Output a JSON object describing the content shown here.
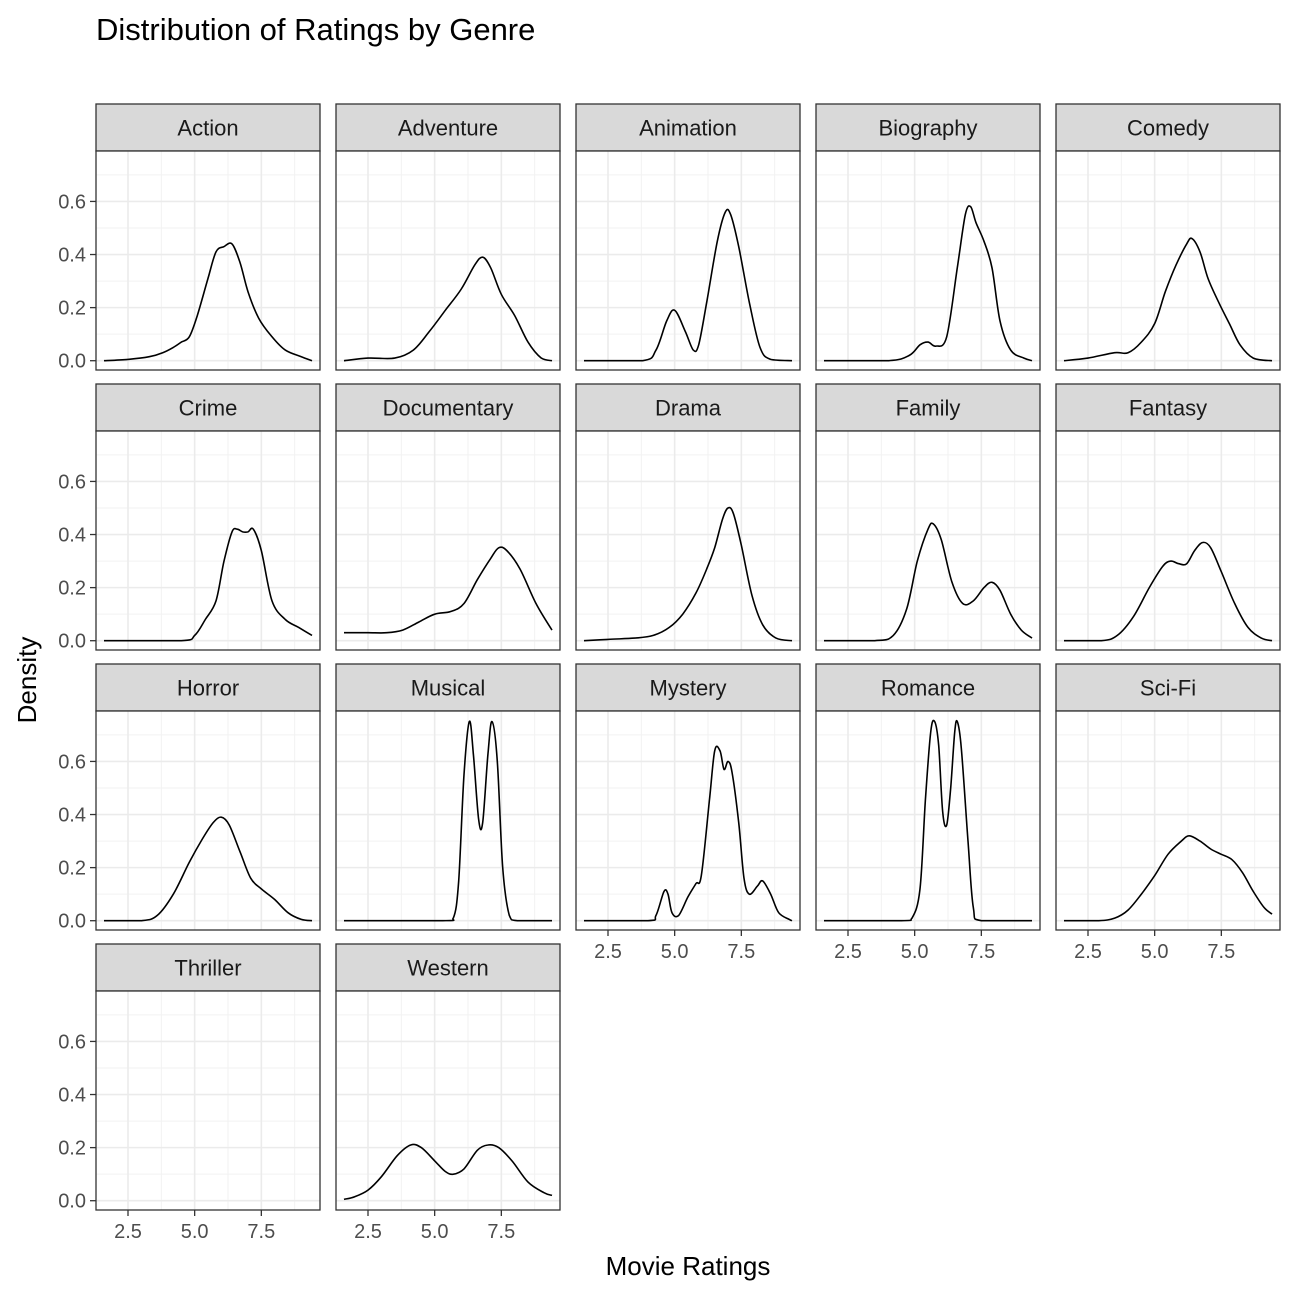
{
  "chart_data": {
    "type": "area",
    "title": "Distribution of Ratings by Genre",
    "xlabel": "Movie Ratings",
    "ylabel": "Density",
    "xlim": [
      1.3,
      9.7
    ],
    "ylim": [
      -0.035,
      0.79
    ],
    "x_ticks": [
      2.5,
      5.0,
      7.5
    ],
    "x_tick_labels": [
      "2.5",
      "5.0",
      "7.5"
    ],
    "y_ticks": [
      0.0,
      0.2,
      0.4,
      0.6
    ],
    "y_tick_labels": [
      "0.0",
      "0.2",
      "0.4",
      "0.6"
    ],
    "grid": true,
    "facet_layout": "wrap 5 columns",
    "panels": [
      {
        "genre": "Action",
        "points": [
          [
            1.6,
            0
          ],
          [
            2.5,
            0.005
          ],
          [
            3.3,
            0.015
          ],
          [
            3.8,
            0.03
          ],
          [
            4.2,
            0.05
          ],
          [
            4.5,
            0.07
          ],
          [
            4.8,
            0.09
          ],
          [
            5.1,
            0.17
          ],
          [
            5.5,
            0.31
          ],
          [
            5.8,
            0.41
          ],
          [
            6.1,
            0.43
          ],
          [
            6.4,
            0.44
          ],
          [
            6.7,
            0.37
          ],
          [
            7.0,
            0.26
          ],
          [
            7.4,
            0.16
          ],
          [
            7.9,
            0.09
          ],
          [
            8.4,
            0.04
          ],
          [
            9.0,
            0.015
          ],
          [
            9.4,
            0
          ]
        ]
      },
      {
        "genre": "Adventure",
        "points": [
          [
            1.6,
            0
          ],
          [
            2.5,
            0.01
          ],
          [
            3.5,
            0.01
          ],
          [
            4.2,
            0.04
          ],
          [
            4.8,
            0.11
          ],
          [
            5.4,
            0.19
          ],
          [
            6.0,
            0.27
          ],
          [
            6.5,
            0.36
          ],
          [
            6.8,
            0.39
          ],
          [
            7.1,
            0.35
          ],
          [
            7.5,
            0.25
          ],
          [
            8.0,
            0.17
          ],
          [
            8.5,
            0.07
          ],
          [
            9.0,
            0.01
          ],
          [
            9.4,
            0
          ]
        ]
      },
      {
        "genre": "Animation",
        "points": [
          [
            1.6,
            0
          ],
          [
            3.8,
            0
          ],
          [
            4.3,
            0.04
          ],
          [
            4.7,
            0.15
          ],
          [
            5.0,
            0.19
          ],
          [
            5.4,
            0.11
          ],
          [
            5.7,
            0.04
          ],
          [
            5.9,
            0.06
          ],
          [
            6.2,
            0.22
          ],
          [
            6.6,
            0.45
          ],
          [
            6.9,
            0.56
          ],
          [
            7.1,
            0.55
          ],
          [
            7.4,
            0.43
          ],
          [
            7.8,
            0.22
          ],
          [
            8.2,
            0.05
          ],
          [
            8.6,
            0.005
          ],
          [
            9.4,
            0
          ]
        ]
      },
      {
        "genre": "Biography",
        "points": [
          [
            1.6,
            0
          ],
          [
            4.0,
            0
          ],
          [
            4.8,
            0.02
          ],
          [
            5.2,
            0.06
          ],
          [
            5.5,
            0.07
          ],
          [
            5.8,
            0.055
          ],
          [
            6.2,
            0.09
          ],
          [
            6.6,
            0.35
          ],
          [
            6.9,
            0.55
          ],
          [
            7.1,
            0.58
          ],
          [
            7.3,
            0.52
          ],
          [
            7.6,
            0.45
          ],
          [
            7.9,
            0.35
          ],
          [
            8.2,
            0.15
          ],
          [
            8.6,
            0.04
          ],
          [
            9.1,
            0.01
          ],
          [
            9.4,
            0
          ]
        ]
      },
      {
        "genre": "Comedy",
        "points": [
          [
            1.6,
            0
          ],
          [
            2.5,
            0.01
          ],
          [
            3.5,
            0.03
          ],
          [
            4.0,
            0.03
          ],
          [
            4.5,
            0.07
          ],
          [
            5.0,
            0.14
          ],
          [
            5.4,
            0.26
          ],
          [
            5.8,
            0.36
          ],
          [
            6.2,
            0.44
          ],
          [
            6.4,
            0.46
          ],
          [
            6.7,
            0.41
          ],
          [
            7.0,
            0.31
          ],
          [
            7.4,
            0.22
          ],
          [
            7.8,
            0.14
          ],
          [
            8.2,
            0.06
          ],
          [
            8.7,
            0.01
          ],
          [
            9.4,
            0
          ]
        ]
      },
      {
        "genre": "Crime",
        "points": [
          [
            1.6,
            0
          ],
          [
            4.5,
            0
          ],
          [
            5.0,
            0.02
          ],
          [
            5.4,
            0.08
          ],
          [
            5.8,
            0.15
          ],
          [
            6.1,
            0.3
          ],
          [
            6.4,
            0.41
          ],
          [
            6.6,
            0.42
          ],
          [
            6.8,
            0.41
          ],
          [
            7.0,
            0.41
          ],
          [
            7.2,
            0.42
          ],
          [
            7.5,
            0.34
          ],
          [
            7.9,
            0.15
          ],
          [
            8.4,
            0.08
          ],
          [
            8.9,
            0.05
          ],
          [
            9.4,
            0.02
          ]
        ]
      },
      {
        "genre": "Documentary",
        "points": [
          [
            1.6,
            0.03
          ],
          [
            2.5,
            0.03
          ],
          [
            3.2,
            0.03
          ],
          [
            3.8,
            0.04
          ],
          [
            4.4,
            0.07
          ],
          [
            5.0,
            0.1
          ],
          [
            5.6,
            0.11
          ],
          [
            6.1,
            0.14
          ],
          [
            6.6,
            0.23
          ],
          [
            7.1,
            0.31
          ],
          [
            7.4,
            0.35
          ],
          [
            7.7,
            0.34
          ],
          [
            8.2,
            0.27
          ],
          [
            8.8,
            0.14
          ],
          [
            9.4,
            0.04
          ]
        ]
      },
      {
        "genre": "Drama",
        "points": [
          [
            1.6,
            0
          ],
          [
            2.5,
            0.005
          ],
          [
            3.5,
            0.01
          ],
          [
            4.2,
            0.02
          ],
          [
            4.8,
            0.05
          ],
          [
            5.3,
            0.1
          ],
          [
            5.8,
            0.18
          ],
          [
            6.2,
            0.27
          ],
          [
            6.5,
            0.35
          ],
          [
            6.8,
            0.46
          ],
          [
            7.0,
            0.5
          ],
          [
            7.2,
            0.48
          ],
          [
            7.5,
            0.36
          ],
          [
            7.9,
            0.17
          ],
          [
            8.3,
            0.06
          ],
          [
            8.8,
            0.01
          ],
          [
            9.4,
            0
          ]
        ]
      },
      {
        "genre": "Family",
        "points": [
          [
            1.6,
            0
          ],
          [
            3.5,
            0
          ],
          [
            4.2,
            0.02
          ],
          [
            4.7,
            0.12
          ],
          [
            5.1,
            0.3
          ],
          [
            5.5,
            0.42
          ],
          [
            5.7,
            0.44
          ],
          [
            6.0,
            0.38
          ],
          [
            6.4,
            0.22
          ],
          [
            6.8,
            0.14
          ],
          [
            7.2,
            0.15
          ],
          [
            7.6,
            0.2
          ],
          [
            7.9,
            0.22
          ],
          [
            8.2,
            0.19
          ],
          [
            8.6,
            0.1
          ],
          [
            9.0,
            0.04
          ],
          [
            9.4,
            0.01
          ]
        ]
      },
      {
        "genre": "Fantasy",
        "points": [
          [
            1.6,
            0
          ],
          [
            3.0,
            0
          ],
          [
            3.6,
            0.02
          ],
          [
            4.2,
            0.09
          ],
          [
            4.8,
            0.2
          ],
          [
            5.3,
            0.28
          ],
          [
            5.6,
            0.3
          ],
          [
            5.9,
            0.29
          ],
          [
            6.2,
            0.29
          ],
          [
            6.5,
            0.34
          ],
          [
            6.8,
            0.37
          ],
          [
            7.1,
            0.35
          ],
          [
            7.5,
            0.26
          ],
          [
            8.0,
            0.14
          ],
          [
            8.5,
            0.05
          ],
          [
            9.0,
            0.01
          ],
          [
            9.4,
            0
          ]
        ]
      },
      {
        "genre": "Horror",
        "points": [
          [
            1.6,
            0
          ],
          [
            3.0,
            0
          ],
          [
            3.6,
            0.02
          ],
          [
            4.2,
            0.1
          ],
          [
            4.8,
            0.22
          ],
          [
            5.3,
            0.31
          ],
          [
            5.7,
            0.37
          ],
          [
            6.0,
            0.39
          ],
          [
            6.3,
            0.36
          ],
          [
            6.7,
            0.26
          ],
          [
            7.1,
            0.16
          ],
          [
            7.5,
            0.12
          ],
          [
            8.0,
            0.08
          ],
          [
            8.5,
            0.03
          ],
          [
            9.0,
            0.005
          ],
          [
            9.4,
            0
          ]
        ]
      },
      {
        "genre": "Musical",
        "points": [
          [
            1.6,
            0
          ],
          [
            5.3,
            0
          ],
          [
            5.7,
            0.01
          ],
          [
            5.9,
            0.15
          ],
          [
            6.1,
            0.55
          ],
          [
            6.3,
            0.75
          ],
          [
            6.45,
            0.63
          ],
          [
            6.65,
            0.38
          ],
          [
            6.8,
            0.37
          ],
          [
            7.0,
            0.63
          ],
          [
            7.15,
            0.75
          ],
          [
            7.35,
            0.6
          ],
          [
            7.55,
            0.2
          ],
          [
            7.8,
            0.02
          ],
          [
            8.1,
            0
          ],
          [
            9.4,
            0
          ]
        ]
      },
      {
        "genre": "Mystery",
        "points": [
          [
            1.6,
            0
          ],
          [
            4.0,
            0
          ],
          [
            4.3,
            0.02
          ],
          [
            4.6,
            0.11
          ],
          [
            4.75,
            0.1
          ],
          [
            4.9,
            0.03
          ],
          [
            5.15,
            0.02
          ],
          [
            5.5,
            0.09
          ],
          [
            5.8,
            0.14
          ],
          [
            6.0,
            0.17
          ],
          [
            6.3,
            0.45
          ],
          [
            6.5,
            0.64
          ],
          [
            6.7,
            0.64
          ],
          [
            6.85,
            0.57
          ],
          [
            7.0,
            0.6
          ],
          [
            7.15,
            0.56
          ],
          [
            7.4,
            0.37
          ],
          [
            7.6,
            0.16
          ],
          [
            7.8,
            0.1
          ],
          [
            8.1,
            0.13
          ],
          [
            8.3,
            0.15
          ],
          [
            8.6,
            0.1
          ],
          [
            8.9,
            0.03
          ],
          [
            9.3,
            0.005
          ],
          [
            9.4,
            0
          ]
        ]
      },
      {
        "genre": "Romance",
        "points": [
          [
            1.6,
            0
          ],
          [
            4.5,
            0
          ],
          [
            4.9,
            0.01
          ],
          [
            5.2,
            0.12
          ],
          [
            5.4,
            0.45
          ],
          [
            5.6,
            0.71
          ],
          [
            5.75,
            0.75
          ],
          [
            5.9,
            0.66
          ],
          [
            6.05,
            0.41
          ],
          [
            6.2,
            0.36
          ],
          [
            6.35,
            0.5
          ],
          [
            6.5,
            0.71
          ],
          [
            6.6,
            0.75
          ],
          [
            6.75,
            0.65
          ],
          [
            7.0,
            0.3
          ],
          [
            7.2,
            0.05
          ],
          [
            7.5,
            0
          ],
          [
            9.4,
            0
          ]
        ]
      },
      {
        "genre": "Sci-Fi",
        "points": [
          [
            1.6,
            0
          ],
          [
            2.9,
            0
          ],
          [
            3.5,
            0.01
          ],
          [
            4.0,
            0.04
          ],
          [
            4.5,
            0.1
          ],
          [
            5.0,
            0.17
          ],
          [
            5.5,
            0.25
          ],
          [
            6.0,
            0.3
          ],
          [
            6.3,
            0.32
          ],
          [
            6.7,
            0.3
          ],
          [
            7.1,
            0.27
          ],
          [
            7.5,
            0.25
          ],
          [
            7.9,
            0.23
          ],
          [
            8.3,
            0.18
          ],
          [
            8.7,
            0.11
          ],
          [
            9.1,
            0.05
          ],
          [
            9.4,
            0.025
          ]
        ]
      },
      {
        "genre": "Thriller",
        "points": []
      },
      {
        "genre": "Western",
        "points": [
          [
            1.6,
            0.005
          ],
          [
            2.0,
            0.015
          ],
          [
            2.5,
            0.04
          ],
          [
            3.0,
            0.09
          ],
          [
            3.6,
            0.17
          ],
          [
            4.1,
            0.21
          ],
          [
            4.5,
            0.2
          ],
          [
            5.0,
            0.15
          ],
          [
            5.4,
            0.11
          ],
          [
            5.7,
            0.1
          ],
          [
            6.1,
            0.12
          ],
          [
            6.6,
            0.19
          ],
          [
            7.0,
            0.21
          ],
          [
            7.4,
            0.2
          ],
          [
            7.9,
            0.15
          ],
          [
            8.5,
            0.07
          ],
          [
            9.1,
            0.03
          ],
          [
            9.4,
            0.02
          ]
        ]
      }
    ]
  }
}
